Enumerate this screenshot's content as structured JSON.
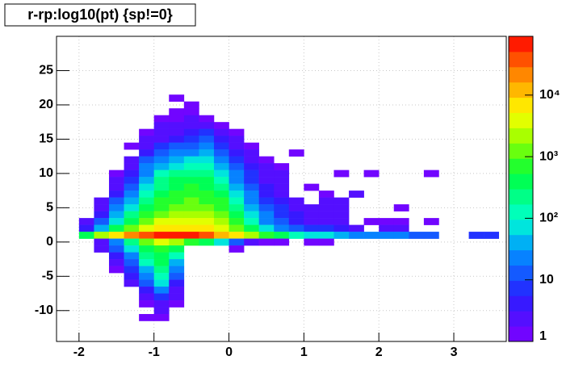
{
  "chart_data": {
    "type": "heatmap",
    "title": "r-rp:log10(pt) {sp!=0}",
    "xlim": [
      -2.3,
      3.7
    ],
    "ylim": [
      -14.5,
      30
    ],
    "zlim": [
      1,
      90000
    ],
    "log_z": true,
    "grid": true,
    "xticks": [
      -2,
      -1,
      0,
      1,
      2,
      3
    ],
    "yticks": [
      -10,
      -5,
      0,
      5,
      10,
      15,
      20,
      25
    ],
    "zticks": [
      1,
      10,
      {
        "value": 100,
        "label": "10²"
      },
      {
        "value": 1000,
        "label": "10³"
      },
      {
        "value": 10000,
        "label": "10⁴"
      }
    ],
    "cells": [
      [
        -0.7,
        21,
        1
      ],
      [
        -0.5,
        20,
        1
      ],
      [
        -0.7,
        19,
        1
      ],
      [
        -0.5,
        19,
        1
      ],
      [
        -0.9,
        18,
        1
      ],
      [
        -0.7,
        18,
        1
      ],
      [
        -0.5,
        18,
        2
      ],
      [
        -0.3,
        18,
        1
      ],
      [
        -0.9,
        17,
        2
      ],
      [
        -0.7,
        17,
        2
      ],
      [
        -0.5,
        17,
        3
      ],
      [
        -0.3,
        17,
        2
      ],
      [
        -0.1,
        17,
        1
      ],
      [
        -1.1,
        16,
        1
      ],
      [
        -0.9,
        16,
        2
      ],
      [
        -0.7,
        16,
        3
      ],
      [
        -0.5,
        16,
        4
      ],
      [
        -0.3,
        16,
        6
      ],
      [
        -0.1,
        16,
        2
      ],
      [
        0.1,
        16,
        1
      ],
      [
        -1.1,
        15,
        2
      ],
      [
        -0.9,
        15,
        3
      ],
      [
        -0.7,
        15,
        5
      ],
      [
        -0.5,
        15,
        8
      ],
      [
        -0.3,
        15,
        10
      ],
      [
        -0.1,
        15,
        4
      ],
      [
        0.1,
        15,
        2
      ],
      [
        -1.3,
        14,
        1
      ],
      [
        -1.1,
        14,
        3
      ],
      [
        -0.9,
        14,
        6
      ],
      [
        -0.7,
        14,
        10
      ],
      [
        -0.5,
        14,
        15
      ],
      [
        -0.3,
        14,
        20
      ],
      [
        -0.1,
        14,
        8
      ],
      [
        0.1,
        14,
        3
      ],
      [
        0.3,
        14,
        1
      ],
      [
        -1.1,
        13,
        5
      ],
      [
        -0.9,
        13,
        12
      ],
      [
        -0.7,
        13,
        20
      ],
      [
        -0.5,
        13,
        30
      ],
      [
        -0.3,
        13,
        40
      ],
      [
        -0.1,
        13,
        15
      ],
      [
        0.1,
        13,
        5
      ],
      [
        0.3,
        13,
        2
      ],
      [
        0.9,
        13,
        1
      ],
      [
        -1.3,
        12,
        2
      ],
      [
        -1.1,
        12,
        10
      ],
      [
        -0.9,
        12,
        25
      ],
      [
        -0.7,
        12,
        40
      ],
      [
        -0.5,
        12,
        60
      ],
      [
        -0.3,
        12,
        70
      ],
      [
        -0.1,
        12,
        30
      ],
      [
        0.1,
        12,
        8
      ],
      [
        0.3,
        12,
        3
      ],
      [
        0.5,
        12,
        1
      ],
      [
        -1.3,
        11,
        3
      ],
      [
        -1.1,
        11,
        20
      ],
      [
        -0.9,
        11,
        50
      ],
      [
        -0.7,
        11,
        80
      ],
      [
        -0.5,
        11,
        120
      ],
      [
        -0.3,
        11,
        130
      ],
      [
        -0.1,
        11,
        50
      ],
      [
        0.1,
        11,
        12
      ],
      [
        0.3,
        11,
        4
      ],
      [
        0.5,
        11,
        2
      ],
      [
        0.7,
        11,
        1
      ],
      [
        -1.5,
        10,
        1
      ],
      [
        -1.3,
        10,
        5
      ],
      [
        -1.1,
        10,
        30
      ],
      [
        -0.9,
        10,
        100
      ],
      [
        -0.7,
        10,
        200
      ],
      [
        -0.5,
        10,
        250
      ],
      [
        -0.3,
        10,
        220
      ],
      [
        -0.1,
        10,
        90
      ],
      [
        0.1,
        10,
        20
      ],
      [
        0.3,
        10,
        6
      ],
      [
        0.5,
        10,
        3
      ],
      [
        0.7,
        10,
        2
      ],
      [
        1.5,
        10,
        1
      ],
      [
        1.9,
        10,
        1
      ],
      [
        2.7,
        10,
        1
      ],
      [
        -1.5,
        9,
        2
      ],
      [
        -1.3,
        9,
        8
      ],
      [
        -1.1,
        9,
        50
      ],
      [
        -0.9,
        9,
        180
      ],
      [
        -0.7,
        9,
        350
      ],
      [
        -0.5,
        9,
        400
      ],
      [
        -0.3,
        9,
        350
      ],
      [
        -0.1,
        9,
        150
      ],
      [
        0.1,
        9,
        30
      ],
      [
        0.3,
        9,
        8
      ],
      [
        0.5,
        9,
        3
      ],
      [
        0.7,
        9,
        2
      ],
      [
        -1.5,
        8,
        3
      ],
      [
        -1.3,
        8,
        12
      ],
      [
        -1.1,
        8,
        80
      ],
      [
        -0.9,
        8,
        280
      ],
      [
        -0.7,
        8,
        500
      ],
      [
        -0.5,
        8,
        600
      ],
      [
        -0.3,
        8,
        500
      ],
      [
        -0.1,
        8,
        250
      ],
      [
        0.1,
        8,
        50
      ],
      [
        0.3,
        8,
        12
      ],
      [
        0.5,
        8,
        4
      ],
      [
        0.7,
        8,
        2
      ],
      [
        1.1,
        8,
        1
      ],
      [
        -1.5,
        7,
        5
      ],
      [
        -1.3,
        7,
        20
      ],
      [
        -1.1,
        7,
        150
      ],
      [
        -0.9,
        7,
        400
      ],
      [
        -0.7,
        7,
        700
      ],
      [
        -0.5,
        7,
        800
      ],
      [
        -0.3,
        7,
        700
      ],
      [
        -0.1,
        7,
        400
      ],
      [
        0.1,
        7,
        80
      ],
      [
        0.3,
        7,
        20
      ],
      [
        0.5,
        7,
        5
      ],
      [
        0.7,
        7,
        3
      ],
      [
        1.3,
        7,
        1
      ],
      [
        1.7,
        7,
        2
      ],
      [
        -1.7,
        6,
        2
      ],
      [
        -1.5,
        6,
        10
      ],
      [
        -1.3,
        6,
        40
      ],
      [
        -1.1,
        6,
        250
      ],
      [
        -0.9,
        6,
        600
      ],
      [
        -0.7,
        6,
        900
      ],
      [
        -0.5,
        6,
        1000
      ],
      [
        -0.3,
        6,
        900
      ],
      [
        -0.1,
        6,
        600
      ],
      [
        0.1,
        6,
        150
      ],
      [
        0.3,
        6,
        30
      ],
      [
        0.5,
        6,
        8
      ],
      [
        0.7,
        6,
        4
      ],
      [
        0.9,
        6,
        2
      ],
      [
        1.3,
        6,
        2
      ],
      [
        1.5,
        6,
        2
      ],
      [
        -1.7,
        5,
        3
      ],
      [
        -1.5,
        5,
        20
      ],
      [
        -1.3,
        5,
        80
      ],
      [
        -1.1,
        5,
        400
      ],
      [
        -0.9,
        5,
        900
      ],
      [
        -0.7,
        5,
        1500
      ],
      [
        -0.5,
        5,
        1600
      ],
      [
        -0.3,
        5,
        1400
      ],
      [
        -0.1,
        5,
        900
      ],
      [
        0.1,
        5,
        250
      ],
      [
        0.3,
        5,
        50
      ],
      [
        0.5,
        5,
        12
      ],
      [
        0.7,
        5,
        6
      ],
      [
        0.9,
        5,
        3
      ],
      [
        1.1,
        5,
        2
      ],
      [
        1.3,
        5,
        2
      ],
      [
        1.5,
        5,
        2
      ],
      [
        2.3,
        5,
        1
      ],
      [
        -1.7,
        4,
        5
      ],
      [
        -1.5,
        4,
        40
      ],
      [
        -1.3,
        4,
        200
      ],
      [
        -1.1,
        4,
        800
      ],
      [
        -0.9,
        4,
        1500
      ],
      [
        -0.7,
        4,
        2500
      ],
      [
        -0.5,
        4,
        2800
      ],
      [
        -0.3,
        4,
        2200
      ],
      [
        -0.1,
        4,
        1300
      ],
      [
        0.1,
        4,
        400
      ],
      [
        0.3,
        4,
        80
      ],
      [
        0.5,
        4,
        20
      ],
      [
        0.7,
        4,
        8
      ],
      [
        0.9,
        4,
        4
      ],
      [
        1.1,
        4,
        3
      ],
      [
        1.3,
        4,
        2
      ],
      [
        1.5,
        4,
        2
      ],
      [
        -1.9,
        3,
        2
      ],
      [
        -1.7,
        3,
        10
      ],
      [
        -1.5,
        3,
        80
      ],
      [
        -1.3,
        3,
        400
      ],
      [
        -1.1,
        3,
        1500
      ],
      [
        -0.9,
        3,
        3000
      ],
      [
        -0.7,
        3,
        4000
      ],
      [
        -0.5,
        3,
        4500
      ],
      [
        -0.3,
        3,
        3500
      ],
      [
        -0.1,
        3,
        2000
      ],
      [
        0.1,
        3,
        600
      ],
      [
        0.3,
        3,
        150
      ],
      [
        0.5,
        3,
        30
      ],
      [
        0.7,
        3,
        12
      ],
      [
        0.9,
        3,
        5
      ],
      [
        1.1,
        3,
        3
      ],
      [
        1.3,
        3,
        2
      ],
      [
        1.5,
        3,
        2
      ],
      [
        1.9,
        3,
        1
      ],
      [
        2.1,
        3,
        1
      ],
      [
        2.3,
        3,
        1
      ],
      [
        2.7,
        3,
        1
      ],
      [
        -1.9,
        2,
        5
      ],
      [
        -1.7,
        2,
        40
      ],
      [
        -1.5,
        2,
        300
      ],
      [
        -1.3,
        2,
        1500
      ],
      [
        -1.1,
        2,
        4000
      ],
      [
        -0.9,
        2,
        7000
      ],
      [
        -0.7,
        2,
        9000
      ],
      [
        -0.5,
        2,
        9000
      ],
      [
        -0.3,
        2,
        7000
      ],
      [
        -0.1,
        2,
        3500
      ],
      [
        0.1,
        2,
        1000
      ],
      [
        0.3,
        2,
        300
      ],
      [
        0.5,
        2,
        80
      ],
      [
        0.7,
        2,
        30
      ],
      [
        0.9,
        2,
        15
      ],
      [
        1.1,
        2,
        8
      ],
      [
        1.3,
        2,
        6
      ],
      [
        1.5,
        2,
        5
      ],
      [
        1.7,
        2,
        3
      ],
      [
        2.1,
        2,
        2
      ],
      [
        2.3,
        2,
        2
      ],
      [
        -1.9,
        1,
        300
      ],
      [
        -1.7,
        1,
        2000
      ],
      [
        -1.5,
        1,
        8000
      ],
      [
        -1.3,
        1,
        20000
      ],
      [
        -1.1,
        1,
        50000
      ],
      [
        -0.9,
        1,
        80000
      ],
      [
        -0.7,
        1,
        80000
      ],
      [
        -0.5,
        1,
        70000
      ],
      [
        -0.3,
        1,
        50000
      ],
      [
        -0.1,
        1,
        15000
      ],
      [
        0.1,
        1,
        6000
      ],
      [
        0.3,
        1,
        2000
      ],
      [
        0.5,
        1,
        700
      ],
      [
        0.7,
        1,
        300
      ],
      [
        0.9,
        1,
        150
      ],
      [
        1.1,
        1,
        80
      ],
      [
        1.3,
        1,
        60
      ],
      [
        1.5,
        1,
        40
      ],
      [
        1.7,
        1,
        30
      ],
      [
        1.9,
        1,
        20
      ],
      [
        2.1,
        1,
        30
      ],
      [
        2.3,
        1,
        20
      ],
      [
        2.5,
        1,
        10
      ],
      [
        2.7,
        1,
        10
      ],
      [
        3.3,
        1,
        8
      ],
      [
        3.5,
        1,
        8
      ],
      [
        -1.7,
        0,
        3
      ],
      [
        -1.5,
        0,
        20
      ],
      [
        -1.3,
        0,
        200
      ],
      [
        -1.1,
        0,
        1500
      ],
      [
        -0.9,
        0,
        3000
      ],
      [
        -0.7,
        0,
        2000
      ],
      [
        -0.5,
        0,
        800
      ],
      [
        -0.3,
        0,
        300
      ],
      [
        -0.1,
        0,
        80
      ],
      [
        0.1,
        0,
        15
      ],
      [
        0.3,
        0,
        3
      ],
      [
        0.5,
        0,
        1
      ],
      [
        0.7,
        0,
        1
      ],
      [
        1.1,
        0,
        1
      ],
      [
        1.3,
        0,
        1
      ],
      [
        -1.7,
        -1,
        2
      ],
      [
        -1.5,
        -1,
        10
      ],
      [
        -1.3,
        -1,
        60
      ],
      [
        -1.1,
        -1,
        400
      ],
      [
        -0.9,
        -1,
        800
      ],
      [
        -0.7,
        -1,
        300
      ],
      [
        0.1,
        -1,
        1
      ],
      [
        -1.5,
        -2,
        5
      ],
      [
        -1.3,
        -2,
        30
      ],
      [
        -1.1,
        -2,
        200
      ],
      [
        -0.9,
        -2,
        500
      ],
      [
        -0.7,
        -2,
        100
      ],
      [
        -1.5,
        -3,
        2
      ],
      [
        -1.3,
        -3,
        15
      ],
      [
        -1.1,
        -3,
        100
      ],
      [
        -0.9,
        -3,
        300
      ],
      [
        -0.7,
        -3,
        50
      ],
      [
        -1.5,
        -4,
        1
      ],
      [
        -1.3,
        -4,
        8
      ],
      [
        -1.1,
        -4,
        50
      ],
      [
        -0.9,
        -4,
        200
      ],
      [
        -0.7,
        -4,
        20
      ],
      [
        -1.3,
        -5,
        4
      ],
      [
        -1.1,
        -5,
        30
      ],
      [
        -0.9,
        -5,
        120
      ],
      [
        -0.7,
        -5,
        10
      ],
      [
        -1.3,
        -6,
        2
      ],
      [
        -1.1,
        -6,
        15
      ],
      [
        -0.9,
        -6,
        60
      ],
      [
        -0.7,
        -6,
        5
      ],
      [
        -1.1,
        -7,
        5
      ],
      [
        -0.9,
        -7,
        20
      ],
      [
        -0.7,
        -7,
        3
      ],
      [
        -1.1,
        -8,
        2
      ],
      [
        -0.9,
        -8,
        6
      ],
      [
        -0.7,
        -8,
        2
      ],
      [
        -1.1,
        -9,
        1
      ],
      [
        -0.9,
        -9,
        3
      ],
      [
        -0.7,
        -9,
        1
      ],
      [
        -0.9,
        -10,
        2
      ],
      [
        -1.1,
        -11,
        1
      ],
      [
        -0.9,
        -11,
        1
      ]
    ]
  }
}
